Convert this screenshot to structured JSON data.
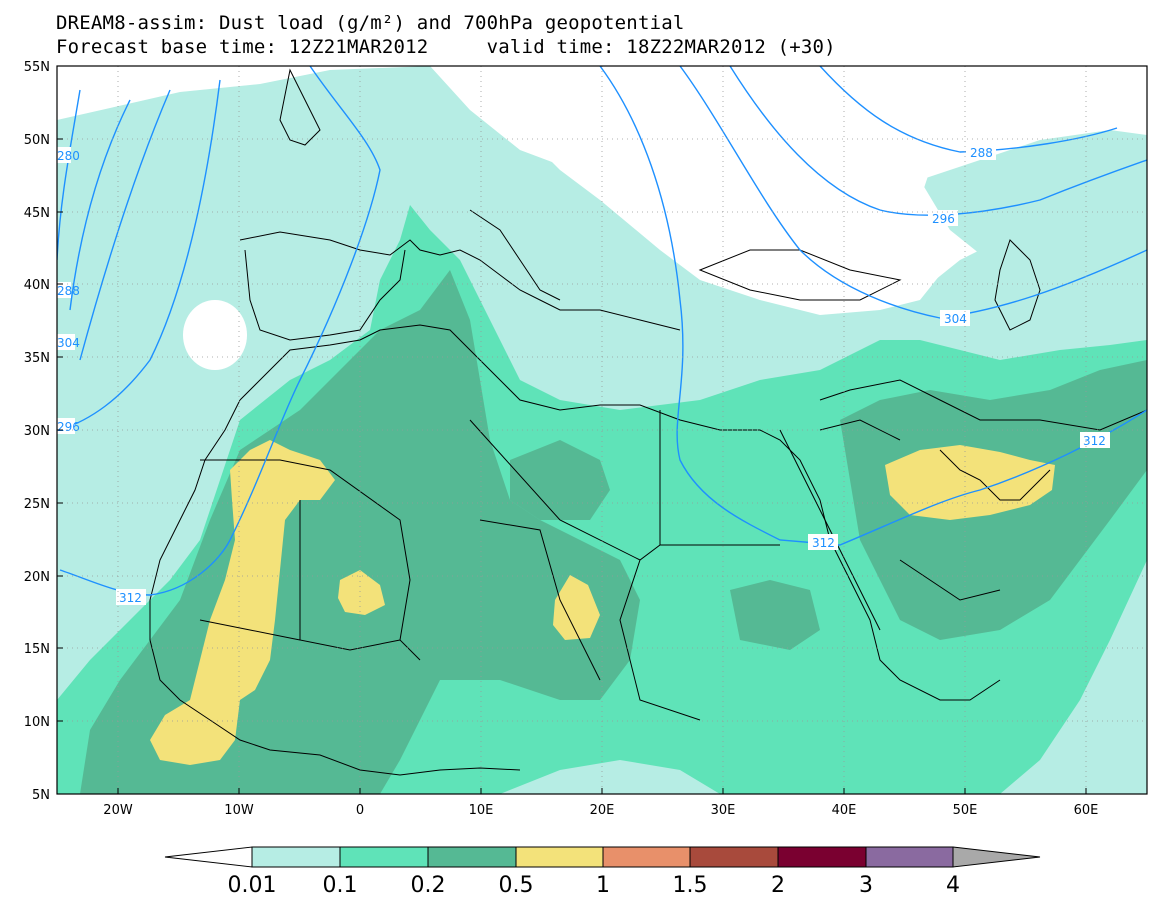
{
  "header": {
    "title_line1": "DREAM8-assim: Dust load (g/m²) and 700hPa geopotential",
    "title_line2": "Forecast base time: 12Z21MAR2012     valid time: 18Z22MAR2012 (+30)"
  },
  "map": {
    "lon_range": [
      -25,
      65
    ],
    "lat_range": [
      5,
      55
    ],
    "lat_labels": [
      "55N",
      "50N",
      "45N",
      "40N",
      "35N",
      "30N",
      "25N",
      "20N",
      "15N",
      "10N",
      "5N"
    ],
    "lon_labels": [
      "20W",
      "10W",
      "0",
      "10E",
      "20E",
      "30E",
      "40E",
      "50E",
      "60E"
    ],
    "contour_labels": [
      "288",
      "296",
      "304",
      "312",
      "280",
      "288",
      "296",
      "304",
      "312",
      "312"
    ],
    "contour_color": "#1e90ff",
    "coastline_color": "#000000"
  },
  "colorbar": {
    "levels": [
      "0.01",
      "0.1",
      "0.2",
      "0.5",
      "1",
      "1.5",
      "2",
      "3",
      "4"
    ],
    "colors": [
      "#b6ede4",
      "#5fe3b8",
      "#55b994",
      "#f3e27a",
      "#e8906a",
      "#a84a3c",
      "#7a0030",
      "#8a6aa0"
    ],
    "under_color": "#ffffff",
    "over_color": "#a9a9a9"
  }
}
